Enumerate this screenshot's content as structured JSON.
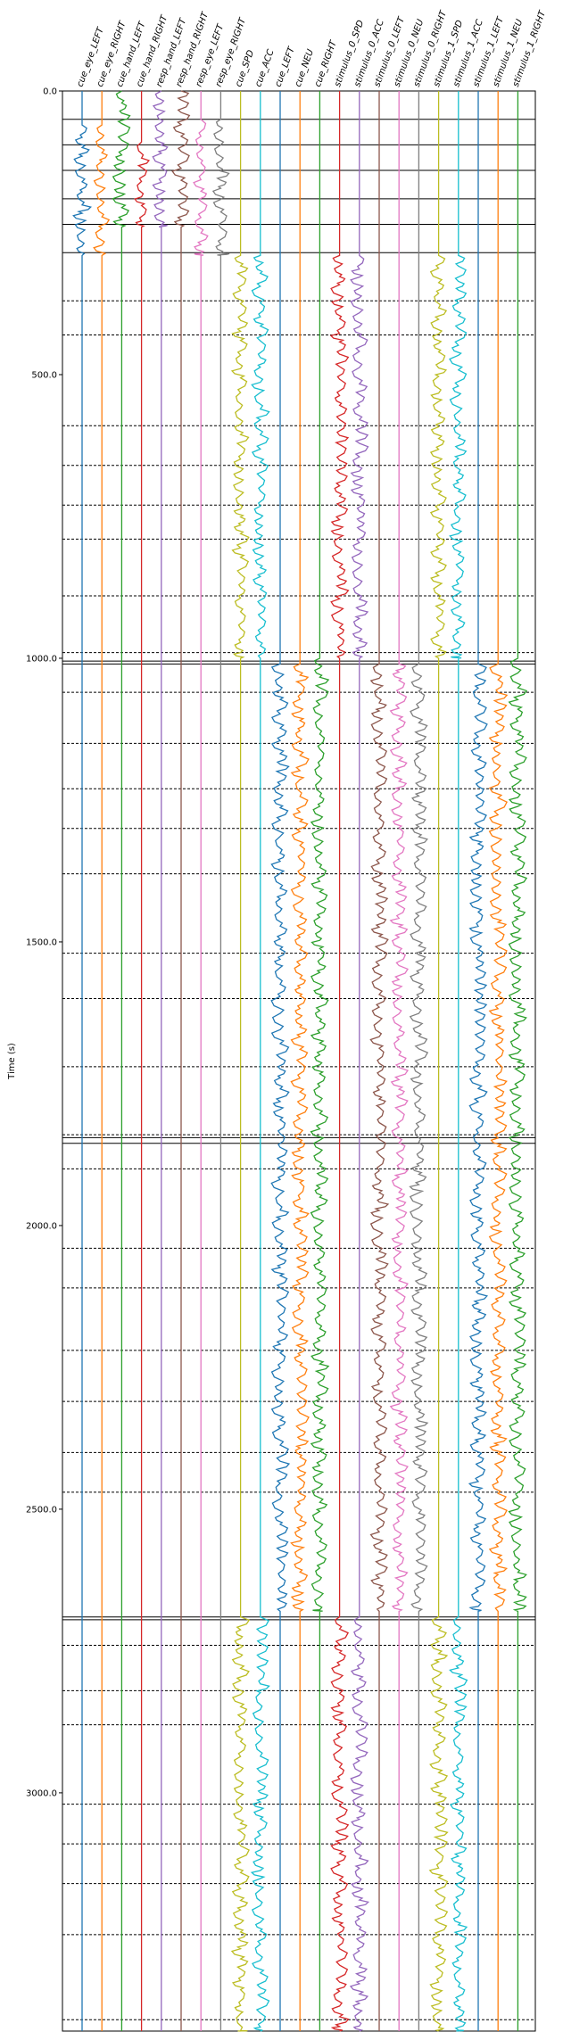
{
  "chart_data": {
    "type": "line",
    "ylabel": "Time (s)",
    "ylim": [
      0,
      3420
    ],
    "y_inverted": true,
    "yticks": [
      {
        "value": 0,
        "label": "0.0"
      },
      {
        "value": 500,
        "label": "500.0"
      },
      {
        "value": 1000,
        "label": "1000.0"
      },
      {
        "value": 1500,
        "label": "1500.0"
      },
      {
        "value": 2000,
        "label": "2000.0"
      },
      {
        "value": 2500,
        "label": "2500.0"
      },
      {
        "value": 3000,
        "label": "3000.0"
      }
    ],
    "columns": [
      {
        "name": "cue_eye_LEFT",
        "color": "#1f77b4",
        "active": [
          [
            60,
            290
          ]
        ]
      },
      {
        "name": "cue_eye_RIGHT",
        "color": "#ff7f0e",
        "active": [
          [
            60,
            290
          ]
        ]
      },
      {
        "name": "cue_hand_LEFT",
        "color": "#2ca02c",
        "active": [
          [
            0,
            240
          ]
        ]
      },
      {
        "name": "cue_hand_RIGHT",
        "color": "#d62728",
        "active": [
          [
            90,
            240
          ]
        ]
      },
      {
        "name": "resp_hand_LEFT",
        "color": "#9467bd",
        "active": [
          [
            0,
            240
          ]
        ]
      },
      {
        "name": "resp_hand_RIGHT",
        "color": "#8c564b",
        "active": [
          [
            0,
            240
          ]
        ]
      },
      {
        "name": "resp_eye_LEFT",
        "color": "#e377c2",
        "active": [
          [
            50,
            290
          ]
        ]
      },
      {
        "name": "resp_eye_RIGHT",
        "color": "#7f7f7f",
        "active": [
          [
            50,
            290
          ]
        ]
      },
      {
        "name": "cue_SPD",
        "color": "#bcbd22",
        "active": [
          [
            290,
            1000
          ],
          [
            2690,
            3420
          ]
        ]
      },
      {
        "name": "cue_ACC",
        "color": "#17becf",
        "active": [
          [
            290,
            1000
          ],
          [
            2690,
            3420
          ]
        ]
      },
      {
        "name": "cue_LEFT",
        "color": "#1f77b4",
        "active": [
          [
            1010,
            2680
          ]
        ]
      },
      {
        "name": "cue_NEU",
        "color": "#ff7f0e",
        "active": [
          [
            1010,
            2680
          ]
        ]
      },
      {
        "name": "cue_RIGHT",
        "color": "#2ca02c",
        "active": [
          [
            1000,
            2680
          ]
        ]
      },
      {
        "name": "stimulus_0_SPD",
        "color": "#d62728",
        "active": [
          [
            290,
            1000
          ],
          [
            2690,
            3420
          ]
        ]
      },
      {
        "name": "stimulus_0_ACC",
        "color": "#9467bd",
        "active": [
          [
            290,
            1000
          ],
          [
            2690,
            3420
          ]
        ]
      },
      {
        "name": "stimulus_0_LEFT",
        "color": "#8c564b",
        "active": [
          [
            1010,
            2680
          ]
        ]
      },
      {
        "name": "stimulus_0_NEU",
        "color": "#e377c2",
        "active": [
          [
            1010,
            2680
          ]
        ]
      },
      {
        "name": "stimulus_0_RIGHT",
        "color": "#7f7f7f",
        "active": [
          [
            1010,
            2680
          ]
        ]
      },
      {
        "name": "stimulus_1_SPD",
        "color": "#bcbd22",
        "active": [
          [
            290,
            1000
          ],
          [
            2690,
            3420
          ]
        ]
      },
      {
        "name": "stimulus_1_ACC",
        "color": "#17becf",
        "active": [
          [
            290,
            1000
          ],
          [
            2690,
            3420
          ]
        ]
      },
      {
        "name": "stimulus_1_LEFT",
        "color": "#1f77b4",
        "active": [
          [
            1010,
            2680
          ]
        ]
      },
      {
        "name": "stimulus_1_NEU",
        "color": "#ff7f0e",
        "active": [
          [
            1010,
            2680
          ]
        ]
      },
      {
        "name": "stimulus_1_RIGHT",
        "color": "#2ca02c",
        "active": [
          [
            1000,
            2680
          ]
        ]
      }
    ],
    "solid_hlines": [
      0,
      50,
      95,
      140,
      190,
      235,
      285,
      1005,
      1010,
      1845,
      1855,
      2690,
      2695
    ],
    "dashed_hlines": [
      370,
      430,
      590,
      660,
      730,
      790,
      890,
      990,
      1060,
      1150,
      1230,
      1300,
      1380,
      1520,
      1600,
      1720,
      1840,
      1900,
      2040,
      2110,
      2220,
      2310,
      2400,
      2470,
      2740,
      2820,
      2880,
      3020,
      3090,
      3160,
      3250,
      3400
    ]
  }
}
